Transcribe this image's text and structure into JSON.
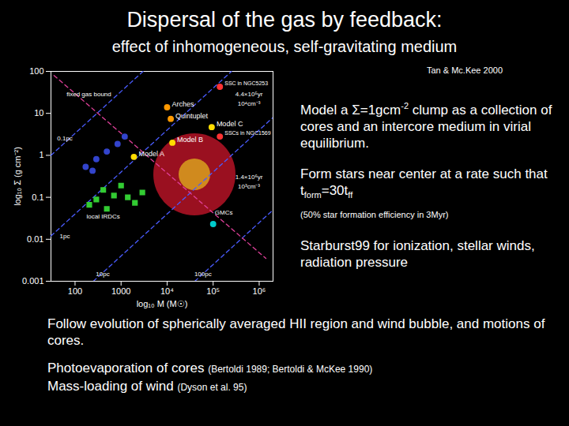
{
  "chart_data": {
    "type": "scatter",
    "title": "Dispersal of the gas by feedback:",
    "subtitle": "effect of inhomogeneous, self-gravitating medium",
    "x_label": "log₁₀ M (M☉)",
    "y_label": "log₁₀ Σ (g cm⁻²)",
    "log": true,
    "grid": false,
    "xlim": [
      30,
      2000000
    ],
    "ylim": [
      0.001,
      100
    ],
    "xticks": [
      100,
      1000,
      {
        "value": 10000,
        "label": "10⁴"
      },
      {
        "value": 100000,
        "label": "10⁵"
      },
      {
        "value": 1000000,
        "label": "10⁶"
      }
    ],
    "yticks": [
      0.001,
      0.01,
      0.1,
      1,
      10,
      100
    ],
    "series": [
      {
        "type": "line",
        "line_style": "dashed",
        "color": "#4a5cff",
        "x": [
          30,
          3000
        ],
        "y": [
          1,
          100
        ]
      },
      {
        "type": "line",
        "line_style": "dashed",
        "color": "#4a5cff",
        "x": [
          30,
          250000
        ],
        "y": [
          0.012,
          100
        ]
      },
      {
        "type": "line",
        "line_style": "dashed",
        "color": "#4a5cff",
        "x": [
          250,
          2000000
        ],
        "y": [
          0.001,
          8
        ]
      },
      {
        "type": "line",
        "line_style": "dashed",
        "color": "#4a5cff",
        "x": [
          40000,
          2000000
        ],
        "y": [
          0.001,
          0.05
        ]
      },
      {
        "type": "line",
        "line_style": "dashed",
        "color": "#e0409a",
        "x": [
          35,
          1400000
        ],
        "y": [
          80,
          0.0035
        ]
      },
      {
        "type": "scatter",
        "marker": "circle",
        "color": "#3344cc",
        "x": [
          170,
          290,
          490,
          840,
          1200,
          240
        ],
        "y": [
          0.53,
          0.81,
          1.23,
          1.87,
          2.8,
          0.43
        ]
      },
      {
        "type": "scatter",
        "marker": "square",
        "color": "#33cc33",
        "x": [
          204,
          290,
          410,
          700,
          1000,
          1400,
          2000,
          490,
          2900
        ],
        "y": [
          0.066,
          0.089,
          0.15,
          0.11,
          0.19,
          0.1,
          0.074,
          0.053,
          0.13
        ]
      },
      {
        "type": "scatter",
        "marker": "circle",
        "color": "#00cccc",
        "x": [
          100000
        ],
        "y": [
          0.023
        ]
      },
      {
        "type": "scatter",
        "marker": "circle",
        "color": "#ff9900",
        "x": [
          10000,
          12000
        ],
        "y": [
          14,
          7.4
        ],
        "point_labels": [
          "Arches",
          "Quintuplet"
        ]
      },
      {
        "type": "scatter",
        "marker": "circle",
        "color": "#ff3333",
        "x": [
          140000,
          140000
        ],
        "y": [
          43,
          2.8
        ],
        "point_labels": [
          "SSC in NGC5253",
          "SSCs in NGC1569"
        ]
      },
      {
        "type": "scatter",
        "marker": "circle",
        "color": "#ffdd00",
        "x": [
          1900,
          13000,
          93000
        ],
        "y": [
          0.92,
          2.0,
          4.7
        ],
        "point_labels": [
          "Model A",
          "Model B",
          "Model C"
        ]
      }
    ],
    "annotations": [
      {
        "text": "fixed gas bound",
        "x": 200,
        "y": 28
      },
      {
        "text": "0.1pc",
        "x": 60,
        "y": 2.5
      },
      {
        "text": "1pc",
        "x": 60,
        "y": 0.012
      },
      {
        "text": "10pc",
        "x": 400,
        "y": 0.0015
      },
      {
        "text": "100pc",
        "x": 60000,
        "y": 0.0015
      },
      {
        "text": "local IRDCs",
        "x": 410,
        "y": 0.035
      },
      {
        "text": "GMCs",
        "x": 170000,
        "y": 0.043
      },
      {
        "text": "4.4×10⁵yr",
        "x": 600000,
        "y": 28
      },
      {
        "text": "10⁴cm⁻³",
        "x": 600000,
        "y": 17
      },
      {
        "text": "1.4×10⁶yr",
        "x": 600000,
        "y": 0.3
      },
      {
        "text": "10³cm⁻³",
        "x": 600000,
        "y": 0.18
      }
    ]
  },
  "slide": {
    "citation": "Tan & Mc.Kee 2000",
    "right_text": [
      {
        "segments": [
          {
            "t": "Model a Σ=1gcm"
          },
          {
            "sup": "-2"
          },
          {
            "t": " clump as a collection of cores and an intercore medium in virial equilibrium."
          }
        ]
      },
      {
        "segments": [
          {
            "t": "Form stars near center at a rate such that t"
          },
          {
            "sub": "form"
          },
          {
            "t": "=30t"
          },
          {
            "sub": "ff"
          }
        ]
      },
      {
        "segments": [
          {
            "small": "(50% star formation efficiency in 3Myr)"
          }
        ]
      },
      {
        "segments": [
          {
            "t": "Starburst99 for ionization, stellar winds, radiation pressure"
          }
        ]
      }
    ],
    "bottom_text": [
      {
        "segments": [
          {
            "t": "Follow evolution of spherically averaged HII region and wind bubble, and motions of cores."
          }
        ]
      },
      {
        "segments": [
          {
            "t": "Photoevaporation of cores "
          },
          {
            "small": "(Bertoldi 1989; Bertoldi & McKee 1990)"
          }
        ]
      },
      {
        "segments": [
          {
            "t": "Mass-loading of wind "
          },
          {
            "small": "(Dyson et al. 95)"
          }
        ]
      }
    ]
  }
}
